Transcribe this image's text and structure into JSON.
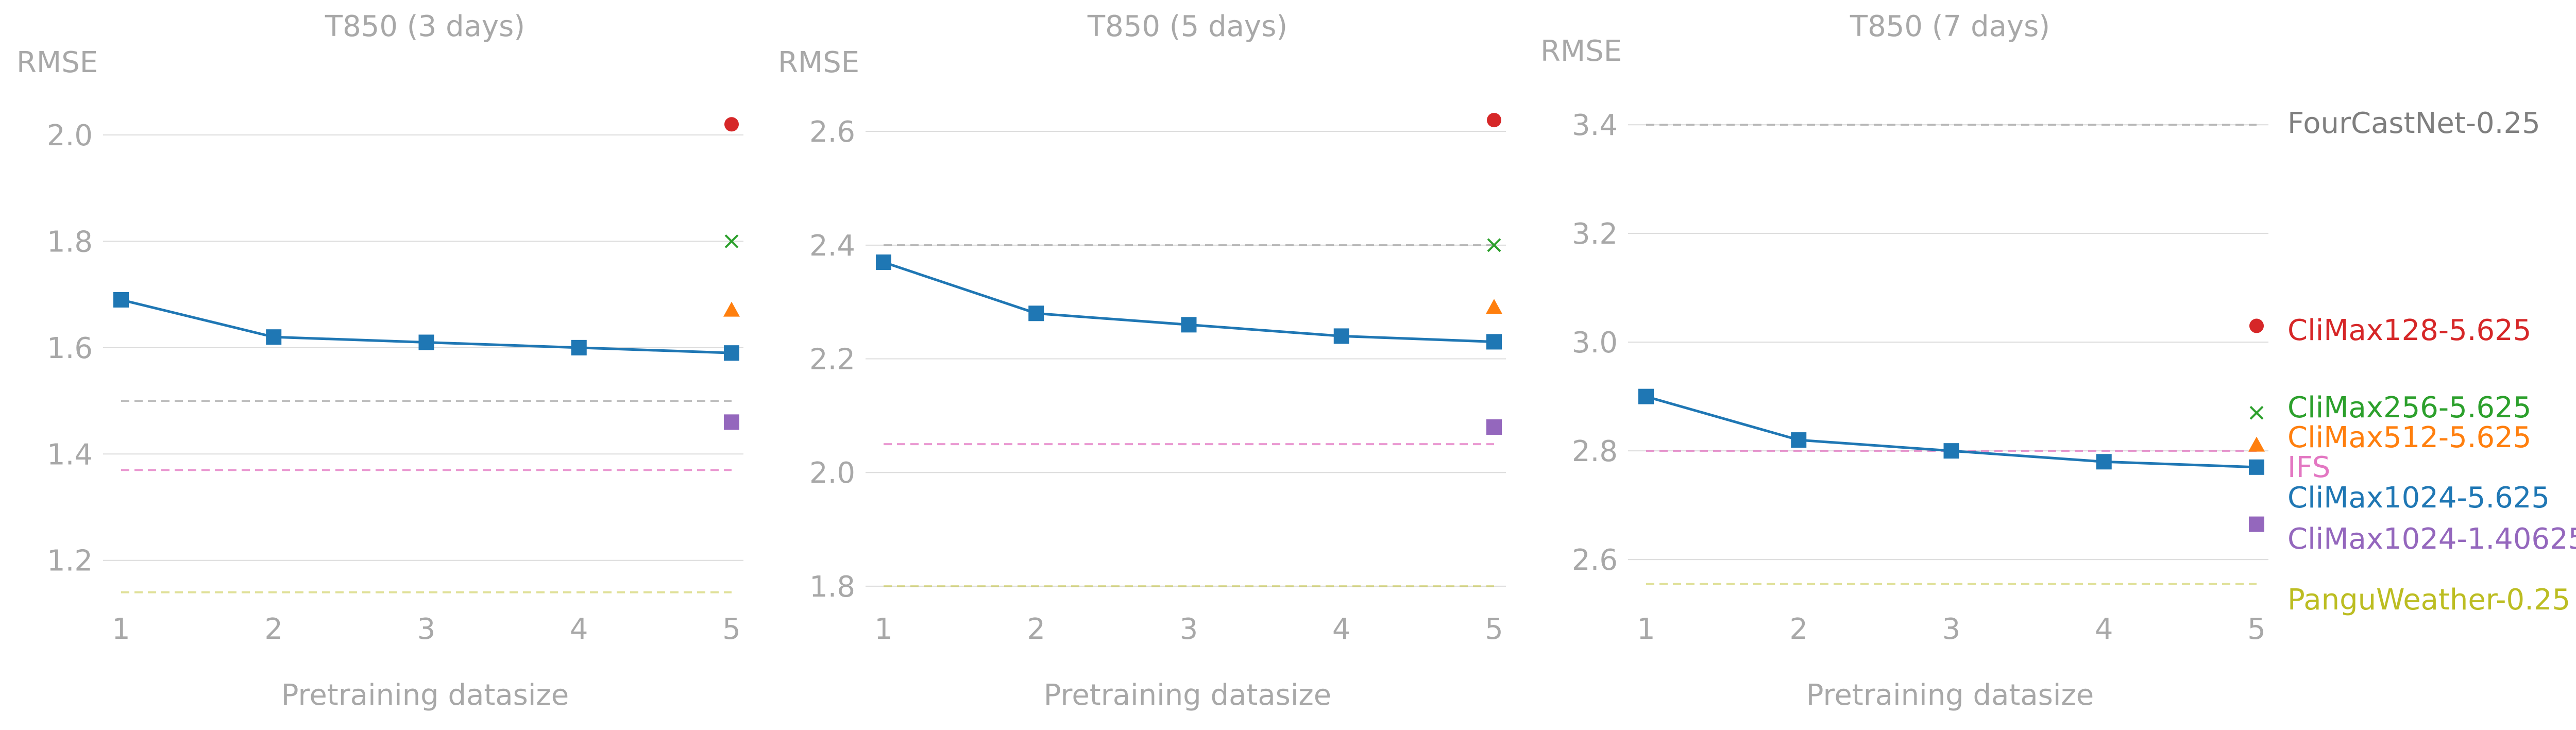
{
  "colors": {
    "axis_text": "#a8a8a8",
    "grid": "#dcdcdc",
    "FourCastNet-0.25": "#a9a9a9",
    "CliMax128-5.625": "#d62728",
    "CliMax256-5.625": "#2ca02c",
    "CliMax512-5.625": "#ff7f0e",
    "IFS": "#e377c2",
    "CliMax1024-5.625": "#1f77b4",
    "CliMax1024-1.40625": "#9467bd",
    "PanguWeather-0.25": "#bcbd22",
    "label_FourCastNet-0.25": "#7f7f7f"
  },
  "legend": [
    {
      "name": "FourCastNet-0.25",
      "style": "dashed-line"
    },
    {
      "name": "CliMax128-5.625",
      "marker": "circle"
    },
    {
      "name": "CliMax256-5.625",
      "marker": "x"
    },
    {
      "name": "CliMax512-5.625",
      "marker": "triangle"
    },
    {
      "name": "IFS",
      "style": "dashed-line"
    },
    {
      "name": "CliMax1024-5.625",
      "marker": "square",
      "style": "line"
    },
    {
      "name": "CliMax1024-1.40625",
      "marker": "square"
    },
    {
      "name": "PanguWeather-0.25",
      "style": "dashed-line"
    }
  ],
  "chart_data": [
    {
      "type": "line",
      "title": "T850 (3 days)",
      "xlabel": "Pretraining datasize",
      "ylabel": "RMSE",
      "x": [
        1,
        2,
        3,
        4,
        5
      ],
      "xticks": [
        "1",
        "2",
        "3",
        "4",
        "5"
      ],
      "yticks": [
        1.2,
        1.4,
        1.6,
        1.8,
        2.0
      ],
      "ytick_labels": [
        "1.2",
        "1.4",
        "1.6",
        "1.8",
        "2.0"
      ],
      "ylim": [
        1.13,
        2.06
      ],
      "grid": "horizontal",
      "series": [
        {
          "name": "CliMax1024-5.625",
          "values": [
            1.69,
            1.62,
            1.61,
            1.6,
            1.59
          ]
        }
      ],
      "references": [
        {
          "name": "FourCastNet-0.25",
          "value": 1.5
        },
        {
          "name": "IFS",
          "value": 1.37
        },
        {
          "name": "PanguWeather-0.25",
          "value": 1.14
        }
      ],
      "points": [
        {
          "name": "CliMax128-5.625",
          "x": 5,
          "value": 2.02
        },
        {
          "name": "CliMax256-5.625",
          "x": 5,
          "value": 1.8
        },
        {
          "name": "CliMax512-5.625",
          "x": 5,
          "value": 1.67
        },
        {
          "name": "CliMax1024-1.40625",
          "x": 5,
          "value": 1.46
        }
      ]
    },
    {
      "type": "line",
      "title": "T850 (5 days)",
      "xlabel": "Pretraining datasize",
      "ylabel": "RMSE",
      "x": [
        1,
        2,
        3,
        4,
        5
      ],
      "xticks": [
        "1",
        "2",
        "3",
        "4",
        "5"
      ],
      "yticks": [
        1.8,
        2.0,
        2.2,
        2.4,
        2.6
      ],
      "ytick_labels": [
        "1.8",
        "2.0",
        "2.2",
        "2.4",
        "2.6"
      ],
      "ylim": [
        1.78,
        2.65
      ],
      "grid": "horizontal",
      "series": [
        {
          "name": "CliMax1024-5.625",
          "values": [
            2.37,
            2.28,
            2.26,
            2.24,
            2.23
          ]
        }
      ],
      "references": [
        {
          "name": "FourCastNet-0.25",
          "value": 2.4
        },
        {
          "name": "IFS",
          "value": 2.05
        },
        {
          "name": "PanguWeather-0.25",
          "value": 1.8
        }
      ],
      "points": [
        {
          "name": "CliMax128-5.625",
          "x": 5,
          "value": 2.62
        },
        {
          "name": "CliMax256-5.625",
          "x": 5,
          "value": 2.4
        },
        {
          "name": "CliMax512-5.625",
          "x": 5,
          "value": 2.29
        },
        {
          "name": "CliMax1024-1.40625",
          "x": 5,
          "value": 2.08
        }
      ]
    },
    {
      "type": "line",
      "title": "T850 (7 days)",
      "xlabel": "Pretraining datasize",
      "ylabel": "RMSE",
      "x": [
        1,
        2,
        3,
        4,
        5
      ],
      "xticks": [
        "1",
        "2",
        "3",
        "4",
        "5"
      ],
      "yticks": [
        2.6,
        2.8,
        3.0,
        3.2,
        3.4
      ],
      "ytick_labels": [
        "2.6",
        "2.8",
        "3.0",
        "3.2",
        "3.4"
      ],
      "ylim": [
        2.53,
        3.44
      ],
      "grid": "horizontal",
      "series": [
        {
          "name": "CliMax1024-5.625",
          "values": [
            2.9,
            2.82,
            2.8,
            2.78,
            2.77
          ]
        }
      ],
      "references": [
        {
          "name": "FourCastNet-0.25",
          "value": 3.4
        },
        {
          "name": "IFS",
          "value": 2.8
        },
        {
          "name": "PanguWeather-0.25",
          "value": 2.555
        }
      ],
      "points": [
        {
          "name": "CliMax128-5.625",
          "x": 5,
          "value": 3.03
        },
        {
          "name": "CliMax256-5.625",
          "x": 5,
          "value": 2.87
        },
        {
          "name": "CliMax512-5.625",
          "x": 5,
          "value": 2.81
        },
        {
          "name": "CliMax1024-1.40625",
          "x": 5,
          "value": 2.665
        }
      ]
    }
  ]
}
